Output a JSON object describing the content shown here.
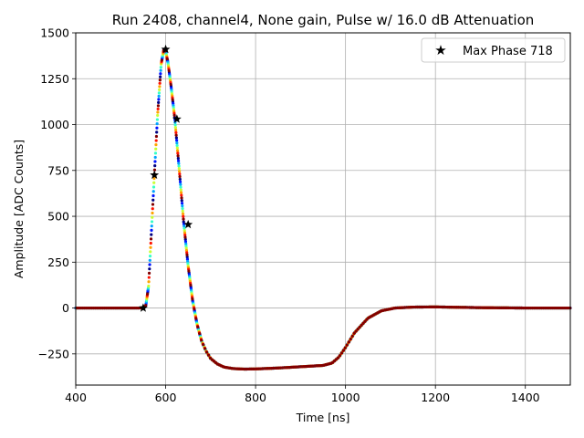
{
  "chart_data": {
    "type": "scatter",
    "title": "Run 2408, channel4, None gain, Pulse w/ 16.0 dB Attenuation",
    "xlabel": "Time [ns]",
    "ylabel": "Amplitude [ADC Counts]",
    "xlim": [
      400,
      1500
    ],
    "ylim": [
      -420,
      1500
    ],
    "xticks": [
      400,
      600,
      800,
      1000,
      1200,
      1400
    ],
    "yticks": [
      -250,
      0,
      250,
      500,
      750,
      1000,
      1250,
      1500
    ],
    "grid": true,
    "legend_position": "top-right",
    "colormap": "jet",
    "pulse_profile": {
      "x": [
        400,
        540,
        550,
        556,
        562,
        568,
        575,
        582,
        590,
        596,
        600,
        605,
        612,
        620,
        630,
        640,
        650,
        660,
        670,
        680,
        690,
        700,
        715,
        730,
        750,
        775,
        800,
        850,
        900,
        950,
        970,
        985,
        1000,
        1020,
        1050,
        1080,
        1110,
        1150,
        1200,
        1250,
        1300,
        1400,
        1500
      ],
      "y": [
        0,
        0,
        2,
        15,
        120,
        400,
        730,
        1050,
        1330,
        1410,
        1400,
        1340,
        1210,
        1040,
        760,
        470,
        230,
        40,
        -90,
        -180,
        -235,
        -275,
        -305,
        -322,
        -330,
        -333,
        -332,
        -327,
        -320,
        -313,
        -300,
        -268,
        -215,
        -135,
        -55,
        -15,
        0,
        5,
        6,
        4,
        2,
        0,
        0
      ]
    },
    "series": [
      {
        "name": "Max Phase 718",
        "marker": "star",
        "color": "#000000",
        "x": [
          550,
          575,
          600,
          625,
          650
        ],
        "y": [
          0,
          725,
          1410,
          1030,
          455
        ]
      }
    ]
  }
}
